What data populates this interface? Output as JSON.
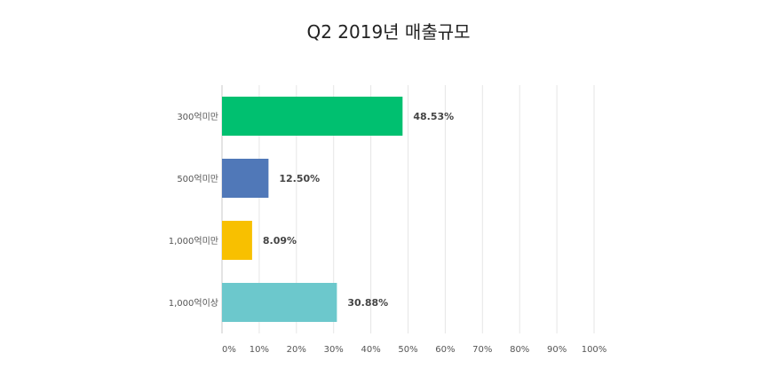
{
  "chart_data": {
    "type": "bar",
    "orientation": "horizontal",
    "title": "Q2 2019년 매출규모",
    "xlabel": "",
    "ylabel": "",
    "categories": [
      "300억미만",
      "500억미만",
      "1,000억미만",
      "1,000억이상"
    ],
    "values": [
      48.53,
      12.5,
      8.09,
      30.88
    ],
    "value_labels": [
      "48.53%",
      "12.50%",
      "8.09%",
      "30.88%"
    ],
    "colors": [
      "#00c070",
      "#5078b8",
      "#f8c000",
      "#6cc8cc"
    ],
    "xlim": [
      0,
      100
    ],
    "x_ticks": [
      0,
      10,
      20,
      30,
      40,
      50,
      60,
      70,
      80,
      90,
      100
    ],
    "x_tick_labels": [
      "0%",
      "10%",
      "20%",
      "30%",
      "40%",
      "50%",
      "60%",
      "70%",
      "80%",
      "90%",
      "100%"
    ],
    "grid": true
  }
}
